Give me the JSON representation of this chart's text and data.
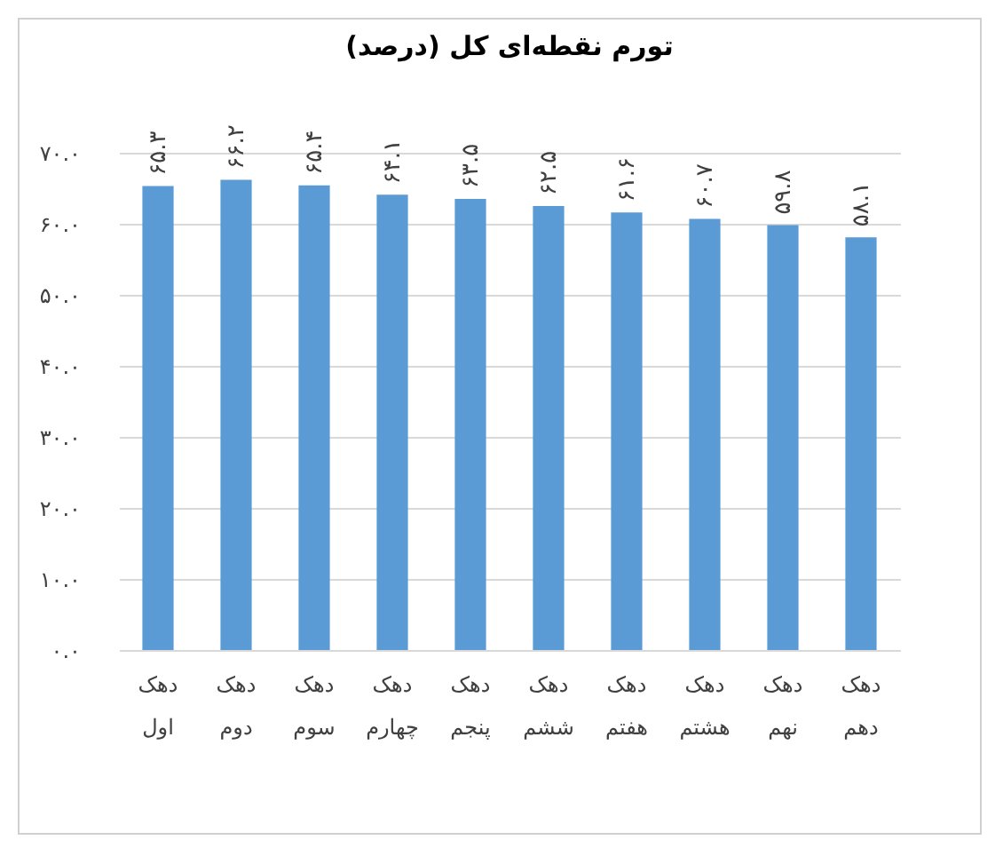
{
  "chart_data": {
    "type": "bar",
    "title": "تورم نقطه‌ای کل (درصد)",
    "categories": [
      "دهک اول",
      "دهک دوم",
      "دهک سوم",
      "دهک چهارم",
      "دهک پنجم",
      "دهک ششم",
      "دهک هفتم",
      "دهک هشتم",
      "دهک نهم",
      "دهک دهم"
    ],
    "values": [
      65.3,
      66.2,
      65.4,
      64.1,
      63.5,
      62.5,
      61.6,
      60.7,
      59.8,
      58.1
    ],
    "value_labels": [
      "۶۵.۳",
      "۶۶.۲",
      "۶۵.۴",
      "۶۴.۱",
      "۶۳.۵",
      "۶۲.۵",
      "۶۱.۶",
      "۶۰.۷",
      "۵۹.۸",
      "۵۸.۱"
    ],
    "color": "#5b9bd5",
    "ylim": [
      0,
      70
    ],
    "yticks": [
      {
        "value": 0,
        "label": "۰.۰"
      },
      {
        "value": 10,
        "label": "۱۰.۰"
      },
      {
        "value": 20,
        "label": "۲۰.۰"
      },
      {
        "value": 30,
        "label": "۳۰.۰"
      },
      {
        "value": 40,
        "label": "۴۰.۰"
      },
      {
        "value": 50,
        "label": "۵۰.۰"
      },
      {
        "value": 60,
        "label": "۶۰.۰"
      },
      {
        "value": 70,
        "label": "۷۰.۰"
      }
    ],
    "grid": "y"
  }
}
